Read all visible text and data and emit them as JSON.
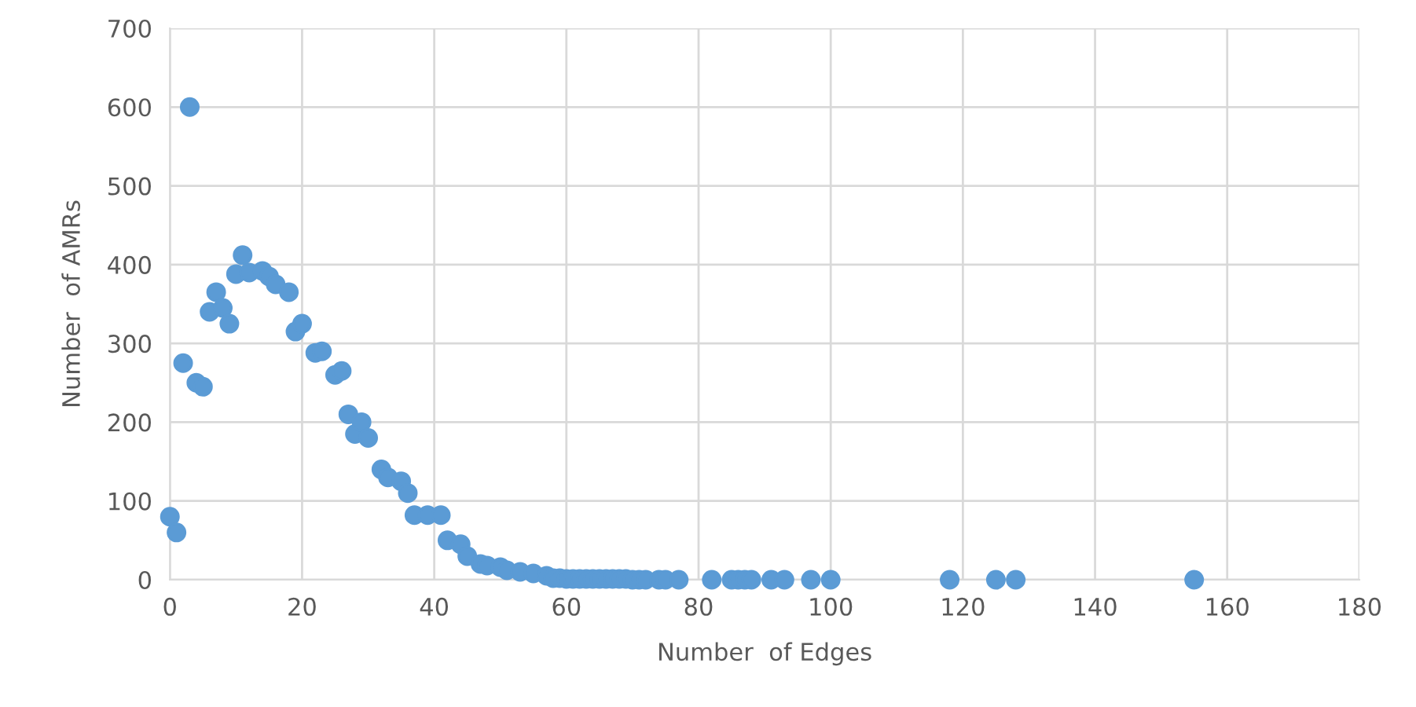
{
  "chart_data": {
    "type": "scatter",
    "xlabel": "Number  of Edges",
    "ylabel": "Number  of AMRs",
    "marker": "circle",
    "grid": true,
    "legend": false,
    "xlim": [
      0,
      180
    ],
    "ylim": [
      0,
      700
    ],
    "xticks": [
      0,
      20,
      40,
      60,
      80,
      100,
      120,
      140,
      160,
      180
    ],
    "yticks": [
      0,
      100,
      200,
      300,
      400,
      500,
      600,
      700
    ],
    "series": [
      {
        "color": "#5b9bd5",
        "x": [
          0,
          1,
          2,
          3,
          4,
          5,
          6,
          7,
          8,
          9,
          10,
          11,
          12,
          14,
          15,
          16,
          18,
          19,
          20,
          22,
          23,
          25,
          26,
          27,
          28,
          29,
          30,
          32,
          33,
          35,
          36,
          37,
          39,
          41,
          42,
          44,
          45,
          47,
          48,
          50,
          51,
          53,
          55,
          57,
          58,
          59,
          60,
          61,
          62,
          63,
          64,
          65,
          66,
          67,
          68,
          69,
          70,
          71,
          72,
          74,
          75,
          77,
          82,
          85,
          86,
          87,
          88,
          91,
          93,
          97,
          100,
          118,
          125,
          128,
          155
        ],
        "values": [
          80,
          60,
          275,
          600,
          250,
          245,
          340,
          365,
          345,
          325,
          388,
          412,
          390,
          392,
          385,
          375,
          365,
          315,
          325,
          288,
          290,
          260,
          265,
          210,
          185,
          200,
          180,
          140,
          130,
          125,
          110,
          82,
          82,
          82,
          50,
          45,
          30,
          20,
          18,
          16,
          12,
          10,
          8,
          5,
          2,
          2,
          1,
          1,
          1,
          1,
          1,
          1,
          1,
          1,
          1,
          1,
          0,
          0,
          0,
          0,
          0,
          0,
          0,
          0,
          0,
          0,
          0,
          0,
          0,
          0,
          0,
          0,
          0,
          0,
          0
        ]
      }
    ]
  }
}
